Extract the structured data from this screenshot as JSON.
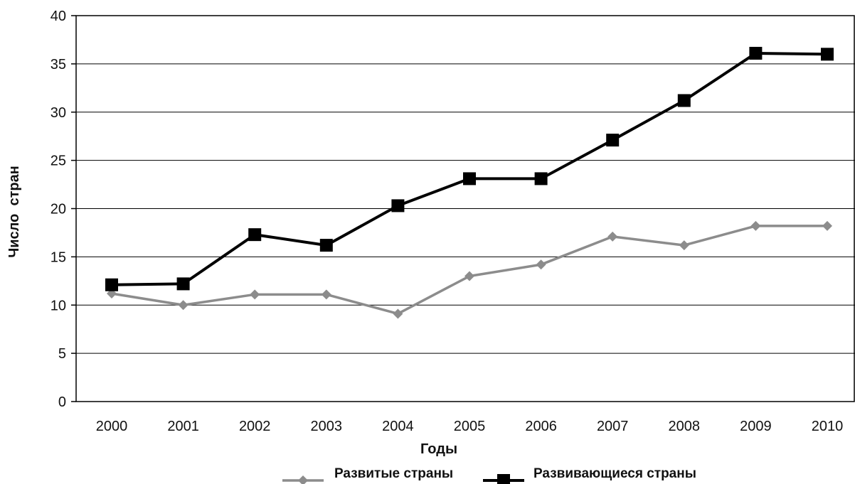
{
  "chart_data": {
    "type": "line",
    "title": "",
    "xlabel": "Годы",
    "ylabel": "Число  стран",
    "categories": [
      "2000",
      "2001",
      "2002",
      "2003",
      "2004",
      "2005",
      "2006",
      "2007",
      "2008",
      "2009",
      "2010"
    ],
    "ylim": [
      0,
      40
    ],
    "yticks": [
      "0",
      "5",
      "10",
      "15",
      "20",
      "25",
      "30",
      "35",
      "40"
    ],
    "grid": "horizontal",
    "legend_position": "bottom",
    "series": [
      {
        "name": "Развитые страны",
        "marker": "diamond",
        "color": "#8c8c8c",
        "values": [
          11.2,
          10,
          11.1,
          11.1,
          9.1,
          13,
          14.2,
          17.1,
          16.2,
          18.2,
          18.2
        ]
      },
      {
        "name": "Развивающиеся страны",
        "marker": "square",
        "color": "#000000",
        "values": [
          12.1,
          12.2,
          17.3,
          16.2,
          20.3,
          23.1,
          23.1,
          27.1,
          31.2,
          36.1,
          36
        ]
      }
    ]
  }
}
